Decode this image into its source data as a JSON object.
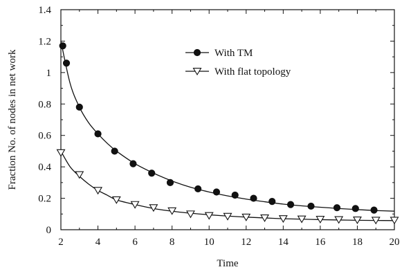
{
  "chart_data": {
    "type": "line",
    "xlabel": "Time",
    "ylabel": "Fraction No. of nodes in net work",
    "xlim": [
      2,
      20
    ],
    "ylim": [
      0,
      1.4
    ],
    "xticks": [
      "2",
      "4",
      "6",
      "8",
      "10",
      "12",
      "14",
      "16",
      "18",
      "20"
    ],
    "yticks": [
      "0",
      "0.2",
      "0.4",
      "0.6",
      "0.8",
      "1",
      "1.2",
      "1.4"
    ],
    "grid": false,
    "legend_position": "top-right",
    "series": [
      {
        "name": "With TM",
        "marker": "filled-circle",
        "x": [
          2.1,
          2.3,
          3.0,
          4.0,
          4.9,
          5.9,
          6.9,
          7.9,
          9.4,
          10.4,
          11.4,
          12.4,
          13.4,
          14.4,
          15.5,
          16.9,
          17.9,
          18.9
        ],
        "y": [
          1.17,
          1.06,
          0.78,
          0.61,
          0.5,
          0.42,
          0.36,
          0.3,
          0.26,
          0.24,
          0.22,
          0.2,
          0.18,
          0.16,
          0.15,
          0.14,
          0.135,
          0.125
        ],
        "curve": {
          "x": [
            2,
            2.5,
            3,
            3.5,
            4,
            4.5,
            5,
            6,
            7,
            8,
            9,
            10,
            11,
            12,
            13,
            14,
            15,
            16,
            17,
            18,
            19,
            20
          ],
          "y": [
            1.2,
            0.93,
            0.78,
            0.68,
            0.61,
            0.55,
            0.5,
            0.42,
            0.36,
            0.31,
            0.27,
            0.24,
            0.215,
            0.195,
            0.178,
            0.163,
            0.152,
            0.143,
            0.135,
            0.128,
            0.122,
            0.118
          ]
        }
      },
      {
        "name": "With flat topology",
        "marker": "open-triangle-down",
        "x": [
          2.0,
          3.0,
          4.0,
          5.0,
          6.0,
          7.0,
          8.0,
          9.0,
          10.0,
          11.0,
          12.0,
          13.0,
          14.0,
          15.0,
          16.0,
          17.0,
          18.0,
          19.0,
          20.0
        ],
        "y": [
          0.49,
          0.35,
          0.25,
          0.19,
          0.16,
          0.14,
          0.12,
          0.1,
          0.09,
          0.085,
          0.08,
          0.075,
          0.07,
          0.068,
          0.066,
          0.064,
          0.062,
          0.06,
          0.06
        ],
        "curve": {
          "x": [
            2,
            2.5,
            3,
            3.5,
            4,
            4.5,
            5,
            6,
            7,
            8,
            9,
            10,
            11,
            12,
            13,
            14,
            15,
            16,
            17,
            18,
            19,
            20
          ],
          "y": [
            0.5,
            0.4,
            0.34,
            0.29,
            0.25,
            0.22,
            0.19,
            0.16,
            0.135,
            0.118,
            0.105,
            0.095,
            0.087,
            0.08,
            0.075,
            0.07,
            0.067,
            0.064,
            0.062,
            0.06,
            0.059,
            0.058
          ]
        }
      }
    ]
  }
}
